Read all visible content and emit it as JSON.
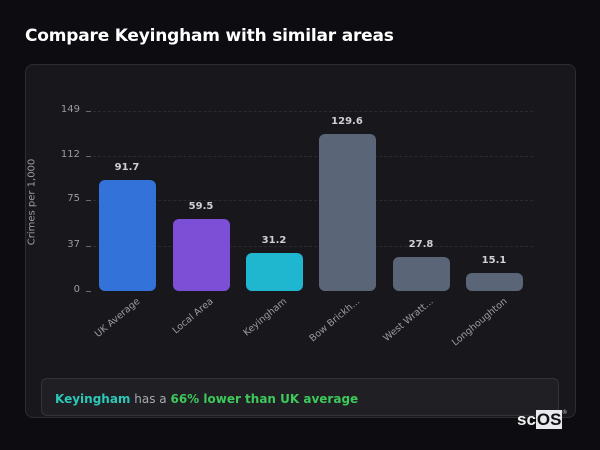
{
  "header": {
    "title": "Compare Keyingham with similar areas"
  },
  "chart_data": {
    "type": "bar",
    "title": "Compare Keyingham with similar areas",
    "xlabel": "",
    "ylabel": "Crimes per 1,000",
    "ylim": [
      0,
      149
    ],
    "yticks": [
      0,
      37,
      75,
      112,
      149
    ],
    "grid": true,
    "categories": [
      "UK Average",
      "Local Area",
      "Keyingham",
      "Bow Brickh...",
      "West Wratt...",
      "Longhoughton"
    ],
    "values": [
      91.7,
      59.5,
      31.2,
      129.6,
      27.8,
      15.1
    ],
    "value_labels": [
      "91.7",
      "59.5",
      "31.2",
      "129.6",
      "27.8",
      "15.1"
    ],
    "colors": [
      "#3373d9",
      "#7c4fd6",
      "#1fb6d0",
      "#5a6577",
      "#5a6577",
      "#5a6577"
    ]
  },
  "summary": {
    "area": "Keyingham",
    "middle": " has a ",
    "difference": "66% lower than UK average"
  },
  "logo": {
    "prefix": "sc",
    "suffix": "OS",
    "mark": "®"
  }
}
